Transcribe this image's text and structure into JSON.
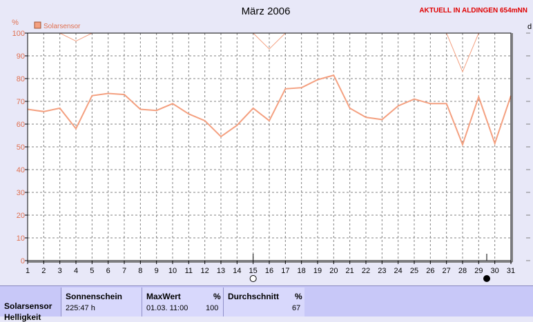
{
  "chart_data": {
    "type": "line",
    "title": "März 2006",
    "station": "AKTUELL IN ALDINGEN 654mNN",
    "yunit": "%",
    "corner_label": "d",
    "legend": [
      {
        "name": "Solarsensor",
        "color": "#f4a080"
      }
    ],
    "x": [
      1,
      2,
      3,
      4,
      5,
      6,
      7,
      8,
      9,
      10,
      11,
      12,
      13,
      14,
      15,
      16,
      17,
      18,
      19,
      20,
      21,
      22,
      23,
      24,
      25,
      26,
      27,
      28,
      29,
      30,
      31
    ],
    "ylim": [
      0,
      100
    ],
    "yticks": [
      0,
      10,
      20,
      30,
      40,
      50,
      60,
      70,
      80,
      90,
      100
    ],
    "series": [
      {
        "role": "average",
        "color": "#f4a080",
        "values": [
          66.5,
          65.5,
          67,
          58,
          72.5,
          73.5,
          73,
          66.5,
          66,
          69,
          64.5,
          61.5,
          54.5,
          59.5,
          67,
          61.5,
          75.5,
          76,
          79.5,
          81.5,
          67,
          63,
          62,
          68,
          71,
          69,
          69,
          51,
          72,
          51.5,
          72.5
        ]
      },
      {
        "role": "max",
        "color": "#f4a080",
        "values": [
          100,
          100,
          100,
          96.5,
          100,
          100,
          100,
          100,
          100,
          100,
          100,
          100,
          100,
          100,
          100,
          93,
          100,
          100,
          100,
          100,
          100,
          100,
          100,
          100,
          100,
          100,
          100,
          83,
          100,
          100,
          100
        ]
      }
    ],
    "grid": true,
    "moon_markers": [
      {
        "day": 15,
        "phase": "full-moon"
      },
      {
        "day": 29.5,
        "phase": "new-moon"
      }
    ]
  },
  "stats": {
    "row_label": "Solarsensor",
    "row_label2": "Helligkeit",
    "sunshine": {
      "header": "Sonnenschein",
      "value": "225:47 h"
    },
    "max": {
      "header": "MaxWert",
      "unit": "%",
      "when": "01.03.  11:00",
      "value": "100"
    },
    "avg": {
      "header": "Durchschnitt",
      "unit": "%",
      "value": "67"
    }
  }
}
